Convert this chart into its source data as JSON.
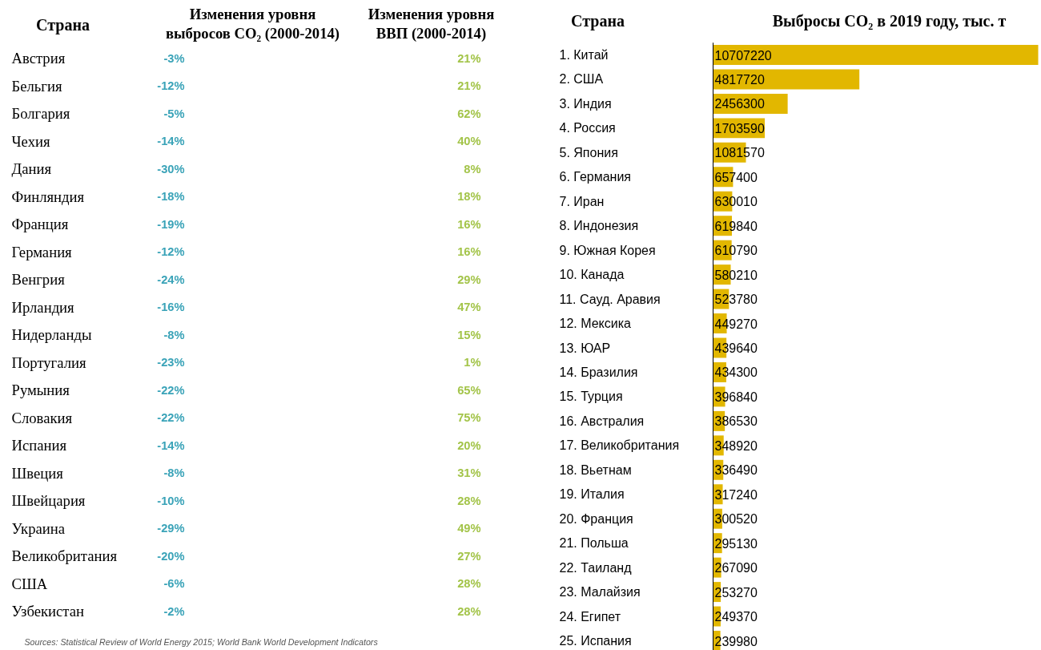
{
  "chart_data": [
    {
      "type": "other",
      "ylabel": "Страна",
      "categories": [
        "Австрия",
        "Бельгия",
        "Болгария",
        "Чехия",
        "Дания",
        "Финляндия",
        "Франция",
        "Германия",
        "Венгрия",
        "Ирландия",
        "Нидерланды",
        "Португалия",
        "Румыния",
        "Словакия",
        "Испания",
        "Швеция",
        "Швейцария",
        "Украина",
        "Великобритания",
        "США",
        "Узбекистан"
      ],
      "series": [
        {
          "name": "Изменения уровня\nвыбросов CO₂ (2000-2014)",
          "values": [
            -3,
            -12,
            -5,
            -14,
            -30,
            -18,
            -19,
            -12,
            -24,
            -16,
            -8,
            -23,
            -22,
            -22,
            -14,
            -8,
            -10,
            -29,
            -20,
            -6,
            -2
          ],
          "value_labels": [
            "-3%",
            "-12%",
            "-5%",
            "-14%",
            "-30%",
            "-18%",
            "-19%",
            "-12%",
            "-24%",
            "-16%",
            "-8%",
            "-23%",
            "-22%",
            "-22%",
            "-14%",
            "-8%",
            "-10%",
            "-29%",
            "-20%",
            "-6%",
            "-2%"
          ]
        },
        {
          "name": "Изменения уровня\nВВП (2000-2014)",
          "values": [
            21,
            21,
            62,
            40,
            8,
            18,
            16,
            16,
            29,
            47,
            15,
            1,
            65,
            75,
            20,
            31,
            28,
            49,
            27,
            28,
            28
          ],
          "value_labels": [
            "21%",
            "21%",
            "62%",
            "40%",
            "8%",
            "18%",
            "16%",
            "16%",
            "29%",
            "47%",
            "15%",
            "1%",
            "65%",
            "75%",
            "20%",
            "31%",
            "28%",
            "49%",
            "27%",
            "28%",
            "28%"
          ]
        }
      ],
      "annotations": [
        "Sources: Statistical Review of World Energy 2015; World Bank World Development Indicators"
      ]
    },
    {
      "type": "bar",
      "orientation": "horizontal",
      "title": "Выбросы CO₂ в 2019 году, тыс. т",
      "ylabel": "Страна",
      "color": "#e2b700",
      "data_labels": true,
      "categories": [
        "1. Китай",
        "2. США",
        "3. Индия",
        "4. Россия",
        "5. Япония",
        "6. Германия",
        "7. Иран",
        "8. Индонезия",
        "9. Южная Корея",
        "10. Канада",
        "11. Сауд. Аравия",
        "12. Мексика",
        "13. ЮАР",
        "14. Бразилия",
        "15. Турция",
        "16. Австралия",
        "17. Великобритания",
        "18. Вьетнам",
        "19. Италия",
        "20. Франция",
        "21. Польша",
        "22. Таиланд",
        "23. Малайзия",
        "24. Египет",
        "25. Испания"
      ],
      "values": [
        10707220,
        4817720,
        2456300,
        1703590,
        1081570,
        657400,
        630010,
        619840,
        610790,
        580210,
        523780,
        449270,
        439640,
        434300,
        396840,
        386530,
        348920,
        336490,
        317240,
        300520,
        295130,
        267090,
        253270,
        249370,
        239980
      ]
    }
  ]
}
